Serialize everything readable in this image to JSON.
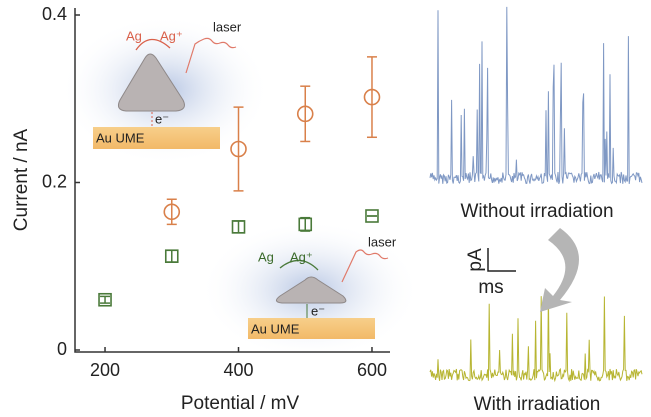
{
  "chart_data": {
    "type": "scatter",
    "x_label": "Potential / mV",
    "y_label": "Current / nA",
    "xlim": [
      155,
      627
    ],
    "ylim": [
      0,
      0.4
    ],
    "xticks": [
      200,
      400,
      600
    ],
    "yticks": [
      0,
      0.2,
      0.4
    ],
    "series": [
      {
        "color": "#d9804a",
        "marker": "circle",
        "x": [
          300,
          400,
          500,
          600
        ],
        "values": [
          0.165,
          0.24,
          0.282,
          0.302
        ],
        "errors": [
          0.015,
          0.05,
          0.033,
          0.048
        ]
      },
      {
        "color": "#4a7a3a",
        "marker": "square",
        "x": [
          200,
          300,
          400,
          500,
          600
        ],
        "values": [
          0.06,
          0.112,
          0.147,
          0.15,
          0.16
        ],
        "errors": [
          0.004,
          0.007,
          0.007,
          0.008,
          0
        ]
      }
    ],
    "annotations": {
      "inset_top": {
        "ag": "Ag",
        "ag_plus": "Ag⁺",
        "laser": "laser",
        "electron": "e⁻",
        "electrode": "Au UME"
      },
      "inset_bottom": {
        "ag": "Ag",
        "ag_plus": "Ag⁺",
        "laser": "laser",
        "electron": "e⁻",
        "electrode": "Au UME"
      },
      "trace_top": "Without irradiation",
      "trace_bottom": "With irradiation",
      "scale_y": "pA",
      "scale_x": "ms"
    }
  }
}
